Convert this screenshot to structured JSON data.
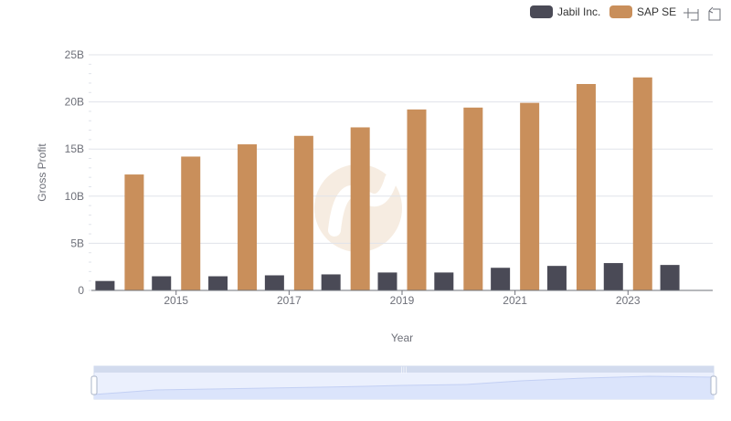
{
  "colors": {
    "jabil": "#4a4a56",
    "sap": "#c98f5b",
    "grid": "#e0e3ea",
    "axis": "#6e7079",
    "zoom_fill": "#dbe4fb",
    "zoom_border": "#d2dbee",
    "zoom_line": "#a7b8ea",
    "watermark": "#f4e9de"
  },
  "toolbar": {
    "zoom_icon": "zoom-icon",
    "restore_icon": "restore-icon"
  },
  "chart_data": {
    "type": "bar",
    "title": "",
    "xlabel": "Year",
    "ylabel": "Gross Profit",
    "ylim": [
      0,
      25
    ],
    "y_ticks": [
      0,
      5,
      10,
      15,
      20,
      25
    ],
    "y_tick_labels": [
      "0",
      "5B",
      "10B",
      "15B",
      "20B",
      "25B"
    ],
    "x_tick_labels": [
      "2015",
      "2017",
      "2019",
      "2021",
      "2023"
    ],
    "categories": [
      "2014",
      "2015",
      "2016",
      "2017",
      "2018",
      "2019",
      "2020",
      "2021",
      "2022",
      "2023",
      "2024"
    ],
    "legend_position": "top-right",
    "series": [
      {
        "name": "Jabil Inc.",
        "values": [
          1.0,
          1.5,
          1.5,
          1.6,
          1.7,
          1.9,
          1.9,
          2.4,
          2.6,
          2.9,
          2.7
        ]
      },
      {
        "name": "SAP SE",
        "values": [
          12.3,
          14.2,
          15.5,
          16.4,
          17.3,
          19.2,
          19.4,
          19.9,
          21.9,
          22.6,
          null
        ]
      }
    ],
    "slider_range": [
      0,
      100
    ]
  }
}
